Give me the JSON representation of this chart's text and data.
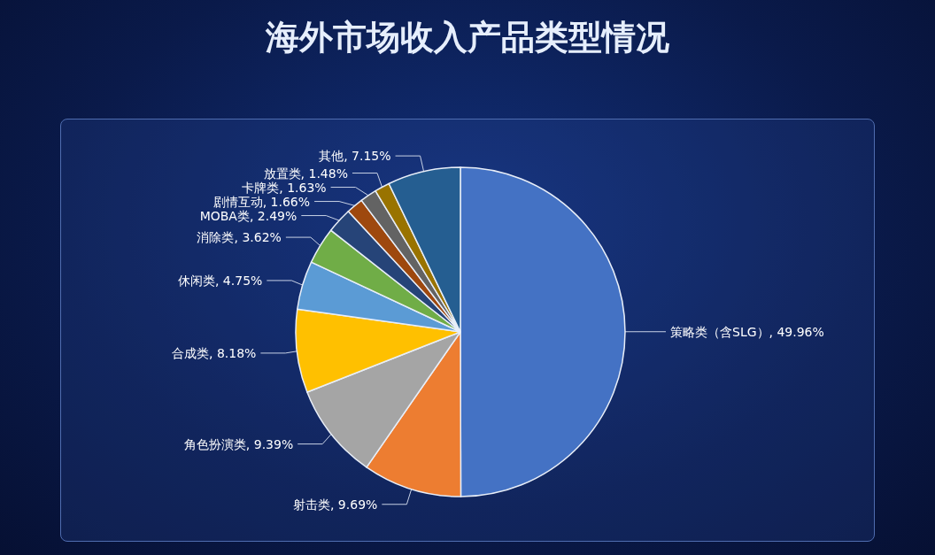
{
  "chart_data": {
    "type": "pie",
    "title": "海外市场收入产品类型情况",
    "categories": [
      "策略类（含SLG）",
      "射击类",
      "角色扮演类",
      "合成类",
      "休闲类",
      "消除类",
      "MOBA类",
      "剧情互动",
      "卡牌类",
      "放置类",
      "其他"
    ],
    "values": [
      49.96,
      9.69,
      9.39,
      8.18,
      4.75,
      3.62,
      2.49,
      1.66,
      1.63,
      1.48,
      7.15
    ],
    "colors": [
      "#4472c4",
      "#ed7d31",
      "#a5a5a5",
      "#ffc000",
      "#5b9bd5",
      "#70ad47",
      "#264478",
      "#9e480e",
      "#636363",
      "#997300",
      "#255e91"
    ],
    "value_labels": [
      ", 49.96%",
      ", 9.69%",
      ", 9.39%",
      ", 8.18%",
      ", 4.75%",
      ", 3.62%",
      ", 2.49%",
      ", 1.66%",
      ", 1.63%",
      ", 1.48%",
      ", 7.15%"
    ],
    "legend": false
  }
}
